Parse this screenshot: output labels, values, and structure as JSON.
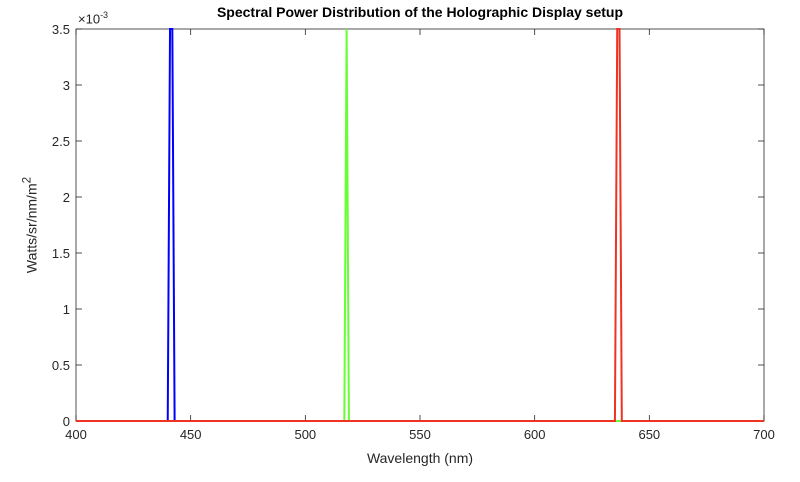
{
  "chart_data": {
    "type": "line",
    "title": "Spectral Power Distribution of the Holographic Display setup",
    "xlabel": "Wavelength (nm)",
    "ylabel": "Watts/sr/nm/m²",
    "ylabel_base": "Watts/sr/nm/m",
    "ylabel_sup": "2",
    "y_exponent_prefix": "×10",
    "y_exponent": "-3",
    "xlim": [
      400,
      700
    ],
    "ylim": [
      0,
      0.0035
    ],
    "xticks": [
      400,
      450,
      500,
      550,
      600,
      650,
      700
    ],
    "yticks": [
      0,
      0.5,
      1,
      1.5,
      2,
      2.5,
      3,
      3.5
    ],
    "ytick_labels": [
      "0",
      "0.5",
      "1",
      "1.5",
      "2",
      "2.5",
      "3",
      "3.5"
    ],
    "grid": false,
    "legend": null,
    "series": [
      {
        "name": "Blue",
        "color": "#0000FF",
        "x": [
          400,
          440,
          441,
          442,
          443,
          700
        ],
        "y": [
          0,
          0,
          0.0035,
          0.0035,
          0,
          0
        ]
      },
      {
        "name": "Green",
        "color": "#66FF33",
        "x": [
          400,
          517,
          518,
          519,
          700
        ],
        "y": [
          0,
          0,
          0.0035,
          0,
          0
        ]
      },
      {
        "name": "Red",
        "color": "#EE3322",
        "x": [
          400,
          635,
          636,
          637,
          638,
          700
        ],
        "y": [
          0,
          0,
          0.0035,
          0.0035,
          0,
          0
        ]
      }
    ]
  }
}
